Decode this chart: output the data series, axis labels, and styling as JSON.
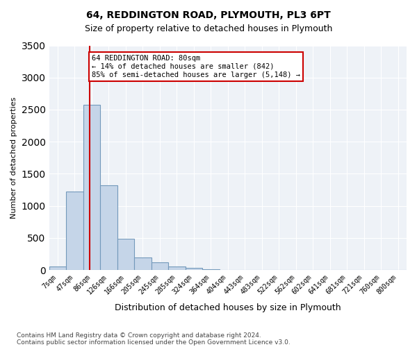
{
  "title1": "64, REDDINGTON ROAD, PLYMOUTH, PL3 6PT",
  "title2": "Size of property relative to detached houses in Plymouth",
  "xlabel": "Distribution of detached houses by size in Plymouth",
  "ylabel": "Number of detached properties",
  "bar_color": "#c5d5e8",
  "bar_edgecolor": "#7399bb",
  "background_color": "#eef2f7",
  "grid_color": "#ffffff",
  "annotation_line_color": "#cc0000",
  "annotation_box_edgecolor": "#cc0000",
  "footer1": "Contains HM Land Registry data © Crown copyright and database right 2024.",
  "footer2": "Contains public sector information licensed under the Open Government Licence v3.0.",
  "annotation_line1": "64 REDDINGTON ROAD: 80sqm",
  "annotation_line2": "← 14% of detached houses are smaller (842)",
  "annotation_line3": "85% of semi-detached houses are larger (5,148) →",
  "property_sqm": 80,
  "ylim": [
    0,
    3500
  ],
  "yticks": [
    0,
    500,
    1000,
    1500,
    2000,
    2500,
    3000,
    3500
  ],
  "bin_labels": [
    "7sqm",
    "47sqm",
    "86sqm",
    "126sqm",
    "166sqm",
    "205sqm",
    "245sqm",
    "285sqm",
    "324sqm",
    "364sqm",
    "404sqm",
    "443sqm",
    "483sqm",
    "522sqm",
    "562sqm",
    "602sqm",
    "641sqm",
    "681sqm",
    "721sqm",
    "760sqm",
    "800sqm"
  ],
  "bar_values": [
    50,
    1220,
    2580,
    1320,
    490,
    200,
    115,
    50,
    30,
    10,
    5,
    2,
    1,
    0,
    0,
    0,
    0,
    0,
    0,
    0,
    0
  ],
  "n_bins": 21
}
